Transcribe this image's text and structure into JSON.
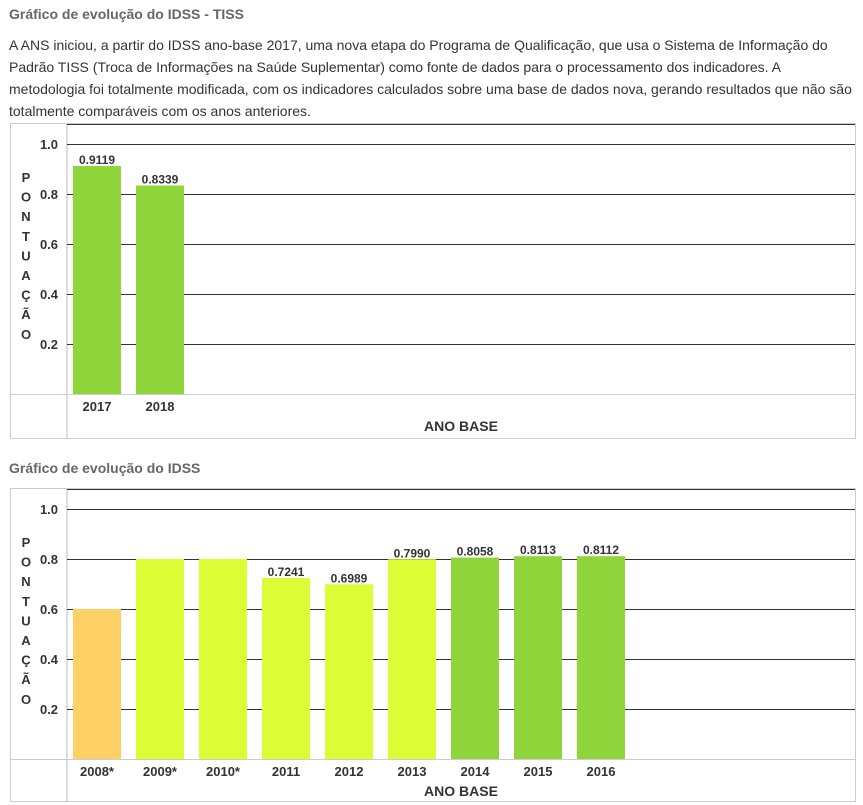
{
  "page": {
    "title_tiss": "Gráfico de evolução do IDSS - TISS",
    "intro": "A ANS iniciou, a partir do IDSS ano-base 2017, uma nova etapa do Programa de Qualificação, que usa o Sistema de Informação do Padrão TISS (Troca de Informações na Saúde Suplementar) como fonte de dados para o processamento dos indicadores. A metodologia foi totalmente modificada, com os indicadores calculados sobre uma base de dados nova, gerando resultados que não são totalmente comparáveis com os anos anteriores.",
    "title_idss": "Gráfico de evolução do IDSS"
  },
  "chart_data": [
    {
      "type": "bar",
      "title": "Gráfico de evolução do IDSS - TISS",
      "ylabel": "PONTUAÇÃO",
      "xlabel": "ANO BASE",
      "ylim": [
        0,
        1.1
      ],
      "yticks": [
        "0.2",
        "0.4",
        "0.6",
        "0.8",
        "1.0"
      ],
      "grid": true,
      "categories": [
        "2017",
        "2018"
      ],
      "values": [
        0.9119,
        0.8339
      ],
      "labels": [
        "0.9119",
        "0.8339"
      ],
      "colors": [
        "#8ed43a",
        "#8ed43a"
      ]
    },
    {
      "type": "bar",
      "title": "Gráfico de evolução do IDSS",
      "ylabel": "PONTUAÇÃO",
      "xlabel": "ANO BASE",
      "ylim": [
        0,
        1.1
      ],
      "yticks": [
        "0.2",
        "0.4",
        "0.6",
        "0.8",
        "1.0"
      ],
      "grid": true,
      "categories": [
        "2008*",
        "2009*",
        "2010*",
        "2011",
        "2012",
        "2013",
        "2014",
        "2015",
        "2016"
      ],
      "values": [
        0.6,
        0.8,
        0.8,
        0.7241,
        0.6989,
        0.799,
        0.8058,
        0.8113,
        0.8112
      ],
      "labels": [
        "",
        "",
        "",
        "0.7241",
        "0.6989",
        "0.7990",
        "0.8058",
        "0.8113",
        "0.8112"
      ],
      "colors": [
        "#ffd066",
        "#dcfd35",
        "#dcfd35",
        "#dcfd35",
        "#dcfd35",
        "#dcfd35",
        "#8ed43a",
        "#8ed43a",
        "#8ed43a"
      ]
    }
  ]
}
